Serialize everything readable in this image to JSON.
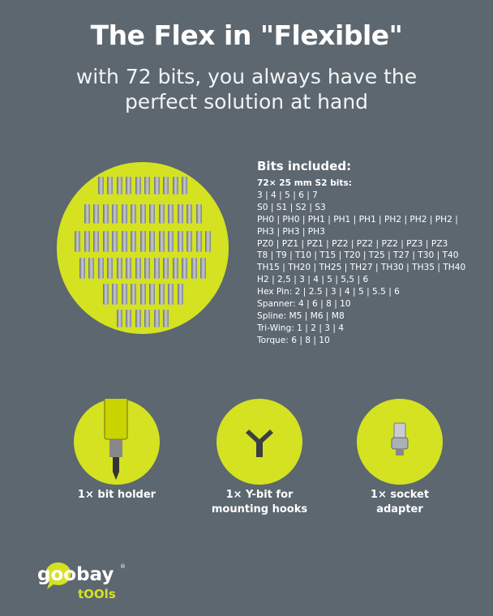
{
  "title": "The Flex in \"Flexible\"",
  "subtitle": [
    "with 72 bits, you always have the",
    "perfect solution at hand"
  ],
  "bits": {
    "heading": "Bits included:",
    "intro": "72× 25 mm S2 bits:",
    "lines": [
      "3 | 4 | 5 | 6 | 7",
      "S0 | S1 | S2 | S3",
      "PH0 | PH0 | PH1 | PH1 | PH1 | PH2 | PH2 | PH2 |",
      "PH3 | PH3 | PH3",
      "PZ0 | PZ1 | PZ1 | PZ2 | PZ2 | PZ2 | PZ3 | PZ3",
      "T8 | T9 | T10 | T15 | T20 | T25 | T27 | T30 | T40",
      "TH15 | TH20 | TH25 | TH27 | TH30 | TH35 | TH40",
      "H2 | 2,5 | 3 | 4 | 5 | 5,5 | 6",
      "Hex Pin: 2 | 2.5 | 3 | 4 | 5 | 5.5 | 6",
      "Spanner: 4 | 6 | 8 | 10",
      "Spline: M5 | M6 | M8",
      "Tri-Wing: 1 | 2 | 3 | 4",
      "Torque: 6 | 8 | 10"
    ]
  },
  "accessories": [
    {
      "label": [
        "1× bit holder"
      ]
    },
    {
      "label": [
        "1× Y-bit for",
        "mounting hooks"
      ]
    },
    {
      "label": [
        "1× socket",
        "adapter"
      ]
    }
  ],
  "logo": {
    "brand": "goobay",
    "sub": "tOOls"
  },
  "colors": {
    "background": "#5c6770",
    "accent": "#d4e221"
  }
}
